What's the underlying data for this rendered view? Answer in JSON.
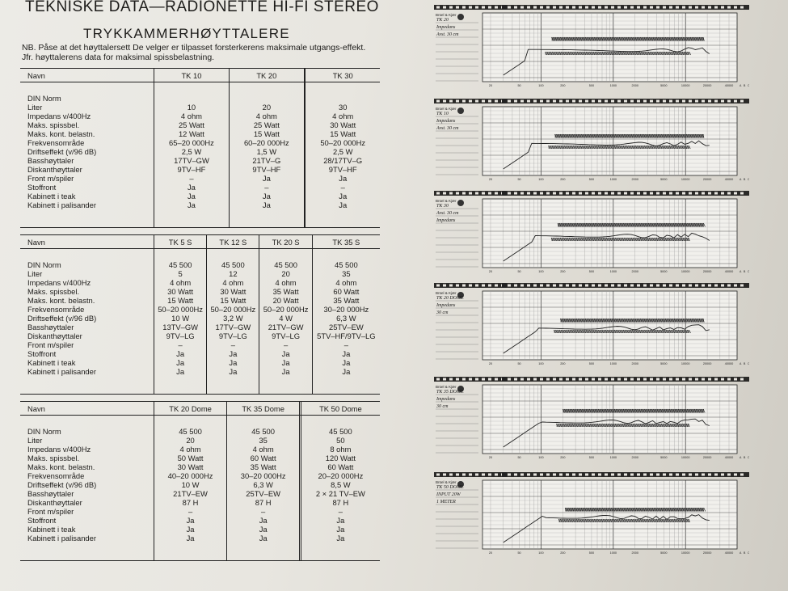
{
  "document": {
    "title": "TEKNISKE DATA—RADIONETTE HI-FI STEREO",
    "subtitle": "TRYKKAMMERHØYTTALERE",
    "note": "NB. Påse at det høyttalersett De velger er tilpasset forsterkerens maksimale utgangs-effekt. Jfr. høyttalerens data for maksimal spissbelastning."
  },
  "tables": [
    {
      "header": [
        "Navn",
        "TK 10",
        "TK 20",
        "",
        "TK 30"
      ],
      "rows": [
        [
          "DIN Norm",
          "",
          "",
          "",
          ""
        ],
        [
          "Liter",
          "10",
          "20",
          "",
          "30"
        ],
        [
          "Impedans v/400Hz",
          "4 ohm",
          "4 ohm",
          "",
          "4 ohm"
        ],
        [
          "Maks. spissbel.",
          "25 Watt",
          "25 Watt",
          "",
          "30 Watt"
        ],
        [
          "Maks. kont. belastn.",
          "12 Watt",
          "15 Watt",
          "",
          "15 Watt"
        ],
        [
          "Frekvensområde",
          "65–20 000Hz",
          "60–20 000Hz",
          "",
          "50–20 000Hz"
        ],
        [
          "Driftseffekt (v/96 dB)",
          "2,5 W",
          "1,5 W",
          "",
          "2,5 W"
        ],
        [
          "Basshøyttaler",
          "17TV–GW",
          "21TV–G",
          "",
          "28/17TV–G"
        ],
        [
          "Diskanthøyttaler",
          "9TV–HF",
          "9TV–HF",
          "",
          "9TV–HF"
        ],
        [
          "Front m/spiler",
          "–",
          "Ja",
          "",
          "Ja"
        ],
        [
          "Stoffront",
          "Ja",
          "–",
          "",
          "–"
        ],
        [
          "Kabinett i teak",
          "Ja",
          "Ja",
          "",
          "Ja"
        ],
        [
          "Kabinett i palisander",
          "Ja",
          "Ja",
          "",
          "Ja"
        ]
      ]
    },
    {
      "header": [
        "Navn",
        "TK 5 S",
        "TK 12 S",
        "TK 20 S",
        "TK 35 S"
      ],
      "rows": [
        [
          "DIN Norm",
          "45 500",
          "45 500",
          "45 500",
          "45 500"
        ],
        [
          "Liter",
          "5",
          "12",
          "20",
          "35"
        ],
        [
          "Impedans v/400Hz",
          "4 ohm",
          "4 ohm",
          "4 ohm",
          "4 ohm"
        ],
        [
          "Maks. spissbel.",
          "30 Watt",
          "30 Watt",
          "35 Watt",
          "60 Watt"
        ],
        [
          "Maks. kont. belastn.",
          "15 Watt",
          "15 Watt",
          "20 Watt",
          "35 Watt"
        ],
        [
          "Frekvensområde",
          "50–20 000Hz",
          "50–20 000Hz",
          "50–20 000Hz",
          "30–20 000Hz"
        ],
        [
          "Driftseffekt (v/96 dB)",
          "10 W",
          "3,2 W",
          "4 W",
          "6,3 W"
        ],
        [
          "Basshøyttaler",
          "13TV–GW",
          "17TV–GW",
          "21TV–GW",
          "25TV–EW"
        ],
        [
          "Diskanthøyttaler",
          "9TV–LG",
          "9TV–LG",
          "9TV–LG",
          "5TV–HF/9TV–LG"
        ],
        [
          "Front m/spiler",
          "–",
          "–",
          "–",
          "–"
        ],
        [
          "Stoffront",
          "Ja",
          "Ja",
          "Ja",
          "Ja"
        ],
        [
          "Kabinett i teak",
          "Ja",
          "Ja",
          "Ja",
          "Ja"
        ],
        [
          "Kabinett i palisander",
          "Ja",
          "Ja",
          "Ja",
          "Ja"
        ]
      ]
    },
    {
      "header": [
        "Navn",
        "TK 20 Dome",
        "TK 35 Dome",
        "",
        "TK 50 Dome"
      ],
      "rows": [
        [
          "DIN Norm",
          "45 500",
          "45 500",
          "",
          "45 500"
        ],
        [
          "Liter",
          "20",
          "35",
          "",
          "50"
        ],
        [
          "Impedans v/400Hz",
          "4 ohm",
          "4 ohm",
          "",
          "8 ohm"
        ],
        [
          "Maks. spissbel.",
          "50 Watt",
          "60 Watt",
          "",
          "120 Watt"
        ],
        [
          "Maks. kont. belastn.",
          "30 Watt",
          "35 Watt",
          "",
          "60 Watt"
        ],
        [
          "Frekvensområde",
          "40–20 000Hz",
          "30–20 000Hz",
          "",
          "20–20 000Hz"
        ],
        [
          "Driftseffekt (v/96 dB)",
          "10 W",
          "6,3 W",
          "",
          "8,5 W"
        ],
        [
          "Basshøyttaler",
          "21TV–EW",
          "25TV–EW",
          "",
          "2 × 21 TV–EW"
        ],
        [
          "Diskanthøyttaler",
          "87 H",
          "87 H",
          "",
          "87 H"
        ],
        [
          "Front m/spiler",
          "–",
          "–",
          "",
          "–"
        ],
        [
          "Stoffront",
          "Ja",
          "Ja",
          "",
          "Ja"
        ],
        [
          "Kabinett i teak",
          "Ja",
          "Ja",
          "",
          "Ja"
        ],
        [
          "Kabinett i palisander",
          "Ja",
          "Ja",
          "",
          "Ja"
        ]
      ]
    }
  ],
  "charts": [
    {
      "brand": "Brüel & Kjær",
      "handwriting": [
        "TK 20",
        "Impedans",
        "Avst. 30 cm"
      ],
      "tick_labels": [
        "20",
        "50",
        "100",
        "200",
        "500",
        "1000",
        "2000",
        "5000",
        "10000",
        "20000",
        "40000"
      ]
    },
    {
      "brand": "Brüel & Kjær",
      "handwriting": [
        "TK 10",
        "Impedans",
        "Avst. 30 cm"
      ],
      "tick_labels": [
        "20",
        "50",
        "100",
        "200",
        "500",
        "1000",
        "2000",
        "5000",
        "10000",
        "20000",
        "40000"
      ]
    },
    {
      "brand": "Brüel & Kjær",
      "handwriting": [
        "TK 30",
        "Avst. 30 cm",
        "Impedans"
      ],
      "tick_labels": [
        "20",
        "50",
        "100",
        "200",
        "500",
        "1000",
        "2000",
        "5000",
        "10000",
        "20000",
        "40000"
      ]
    },
    {
      "brand": "Brüel & Kjær",
      "handwriting": [
        "TK 20 DOME",
        "Impedans",
        "30 cm"
      ],
      "tick_labels": [
        "20",
        "50",
        "100",
        "200",
        "500",
        "1000",
        "2000",
        "5000",
        "10000",
        "20000",
        "40000"
      ]
    },
    {
      "brand": "Brüel & Kjær",
      "handwriting": [
        "TK 35 DOME",
        "Impedans",
        "30 cm"
      ],
      "tick_labels": [
        "20",
        "50",
        "100",
        "200",
        "500",
        "1000",
        "2000",
        "5000",
        "10000",
        "20000",
        "40000"
      ]
    },
    {
      "brand": "Brüel & Kjær",
      "handwriting": [
        "TK 50 DOME",
        "INPUT 20W",
        "1 METER"
      ],
      "tick_labels": [
        "20",
        "50",
        "100",
        "200",
        "500",
        "1000",
        "2000",
        "5000",
        "10000",
        "20000",
        "40000"
      ]
    }
  ]
}
